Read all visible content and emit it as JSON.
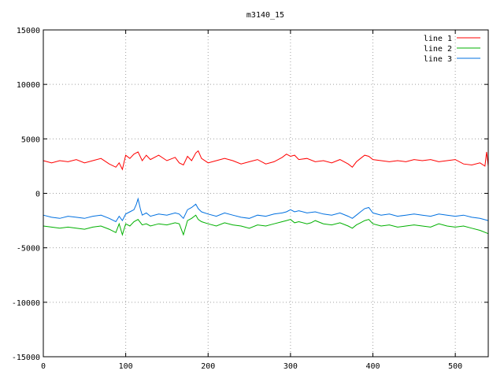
{
  "chart_data": {
    "type": "line",
    "title": "m3140_15",
    "xlabel": "",
    "ylabel": "",
    "xlim": [
      0,
      540
    ],
    "ylim": [
      -15000,
      15000
    ],
    "xticks": [
      0,
      100,
      200,
      300,
      400,
      500
    ],
    "yticks": [
      -15000,
      -10000,
      -5000,
      0,
      5000,
      10000,
      15000
    ],
    "grid": true,
    "legend_position": "top-right",
    "series": [
      {
        "name": "line 1",
        "color": "#ff0000",
        "x": [
          0,
          10,
          20,
          30,
          40,
          50,
          60,
          70,
          80,
          88,
          92,
          96,
          100,
          105,
          110,
          115,
          120,
          125,
          130,
          140,
          150,
          160,
          165,
          170,
          175,
          180,
          185,
          188,
          192,
          200,
          210,
          220,
          230,
          240,
          250,
          260,
          270,
          280,
          290,
          295,
          300,
          305,
          310,
          320,
          330,
          340,
          350,
          360,
          370,
          375,
          380,
          385,
          390,
          395,
          400,
          410,
          420,
          430,
          440,
          450,
          460,
          470,
          480,
          490,
          500,
          510,
          520,
          530,
          536,
          538,
          540
        ],
        "y": [
          3000,
          2800,
          3000,
          2900,
          3100,
          2800,
          3000,
          3200,
          2700,
          2400,
          2800,
          2200,
          3500,
          3200,
          3600,
          3800,
          3000,
          3500,
          3100,
          3500,
          3000,
          3300,
          2800,
          2600,
          3400,
          3000,
          3700,
          3900,
          3200,
          2800,
          3000,
          3200,
          3000,
          2700,
          2900,
          3100,
          2700,
          2900,
          3300,
          3600,
          3400,
          3500,
          3100,
          3200,
          2900,
          3000,
          2800,
          3100,
          2700,
          2400,
          2900,
          3200,
          3500,
          3400,
          3100,
          3000,
          2900,
          3000,
          2900,
          3100,
          3000,
          3100,
          2900,
          3000,
          3100,
          2700,
          2600,
          2800,
          2500,
          3800,
          2500
        ]
      },
      {
        "name": "line 2",
        "color": "#00b000",
        "x": [
          0,
          10,
          20,
          30,
          40,
          50,
          60,
          70,
          80,
          88,
          92,
          96,
          100,
          105,
          110,
          115,
          120,
          125,
          130,
          140,
          150,
          160,
          165,
          170,
          175,
          180,
          185,
          188,
          192,
          200,
          210,
          220,
          230,
          240,
          250,
          260,
          270,
          280,
          290,
          295,
          300,
          305,
          310,
          320,
          325,
          330,
          340,
          350,
          360,
          370,
          375,
          380,
          385,
          390,
          395,
          400,
          410,
          420,
          430,
          440,
          450,
          460,
          470,
          480,
          490,
          500,
          510,
          520,
          530,
          540
        ],
        "y": [
          -3000,
          -3100,
          -3200,
          -3100,
          -3200,
          -3300,
          -3100,
          -3000,
          -3300,
          -3600,
          -2800,
          -3800,
          -2800,
          -3000,
          -2600,
          -2400,
          -2900,
          -2800,
          -3000,
          -2800,
          -2900,
          -2700,
          -2800,
          -3800,
          -2500,
          -2300,
          -2000,
          -2400,
          -2600,
          -2800,
          -3000,
          -2700,
          -2900,
          -3000,
          -3200,
          -2900,
          -3000,
          -2800,
          -2600,
          -2500,
          -2400,
          -2700,
          -2600,
          -2800,
          -2700,
          -2500,
          -2800,
          -2900,
          -2700,
          -3000,
          -3200,
          -2900,
          -2700,
          -2500,
          -2400,
          -2800,
          -3000,
          -2900,
          -3100,
          -3000,
          -2900,
          -3000,
          -3100,
          -2800,
          -3000,
          -3100,
          -3000,
          -3200,
          -3400,
          -3700
        ]
      },
      {
        "name": "line 3",
        "color": "#0070e0",
        "x": [
          0,
          10,
          20,
          30,
          40,
          50,
          60,
          70,
          80,
          88,
          92,
          96,
          100,
          105,
          110,
          113,
          115,
          118,
          120,
          125,
          130,
          140,
          150,
          160,
          165,
          170,
          175,
          180,
          185,
          188,
          192,
          200,
          210,
          220,
          230,
          240,
          250,
          260,
          270,
          280,
          290,
          295,
          300,
          305,
          310,
          320,
          330,
          340,
          350,
          360,
          370,
          375,
          380,
          385,
          390,
          395,
          400,
          410,
          420,
          430,
          440,
          450,
          460,
          470,
          480,
          490,
          500,
          510,
          520,
          530,
          540
        ],
        "y": [
          -2000,
          -2200,
          -2300,
          -2100,
          -2200,
          -2300,
          -2100,
          -2000,
          -2300,
          -2600,
          -2100,
          -2500,
          -1900,
          -1700,
          -1500,
          -1000,
          -500,
          -1500,
          -2000,
          -1800,
          -2100,
          -1900,
          -2000,
          -1800,
          -1900,
          -2300,
          -1500,
          -1300,
          -1000,
          -1400,
          -1700,
          -1900,
          -2100,
          -1800,
          -2000,
          -2200,
          -2300,
          -2000,
          -2100,
          -1900,
          -1800,
          -1700,
          -1500,
          -1700,
          -1600,
          -1800,
          -1700,
          -1900,
          -2000,
          -1800,
          -2100,
          -2300,
          -2000,
          -1700,
          -1400,
          -1300,
          -1800,
          -2000,
          -1900,
          -2100,
          -2000,
          -1900,
          -2000,
          -2100,
          -1900,
          -2000,
          -2100,
          -2000,
          -2200,
          -2300,
          -2500
        ]
      }
    ]
  }
}
